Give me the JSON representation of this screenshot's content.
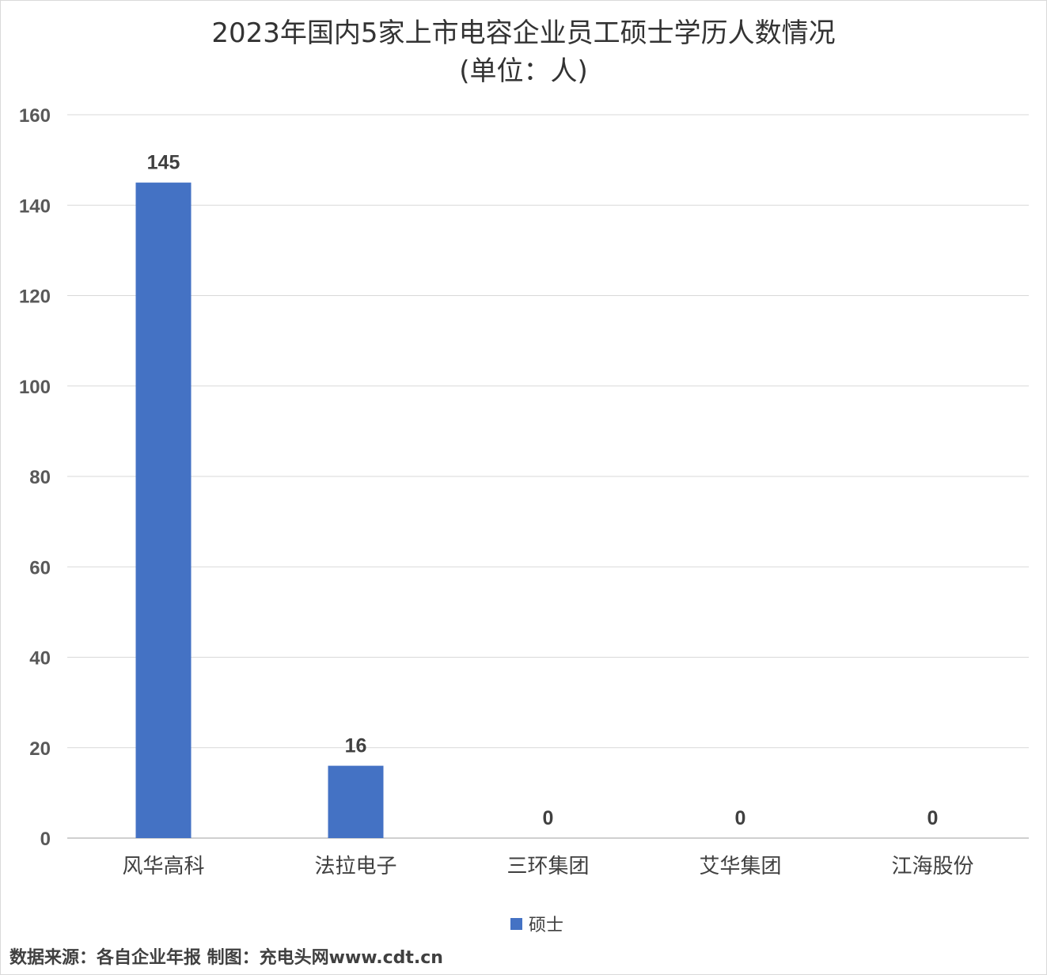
{
  "chart_data": {
    "type": "bar",
    "title": "2023年国内5家上市电容企业员工硕士学历人数情况",
    "subtitle": "(单位：人)",
    "categories": [
      "风华高科",
      "法拉电子",
      "三环集团",
      "艾华集团",
      "江海股份"
    ],
    "series": [
      {
        "name": "硕士",
        "values": [
          145,
          16,
          0,
          0,
          0
        ],
        "color": "#4472c4"
      }
    ],
    "ylim": [
      0,
      160
    ],
    "yticks": [
      0,
      20,
      40,
      60,
      80,
      100,
      120,
      140,
      160
    ],
    "grid": true,
    "legend_position": "bottom"
  },
  "source_text": "数据来源：各自企业年报  制图：充电头网www.cdt.cn"
}
